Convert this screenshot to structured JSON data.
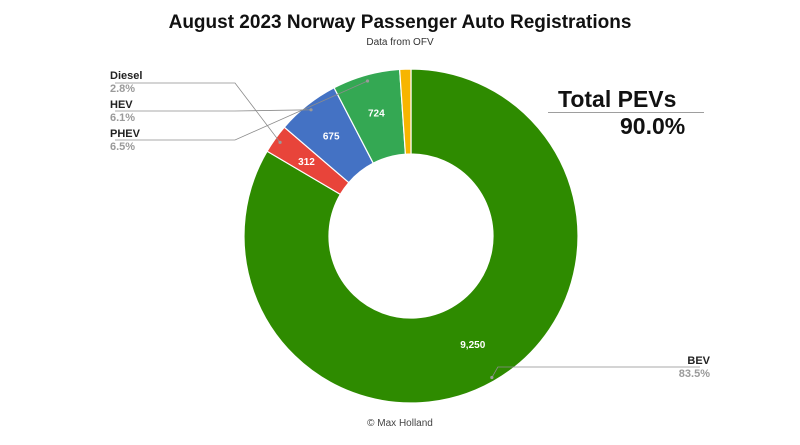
{
  "chart_data": {
    "type": "pie",
    "subtype": "donut",
    "title": "August 2023 Norway Passenger Auto Registrations",
    "subtitle": "Data from OFV",
    "series": [
      {
        "name": "BEV",
        "value": 9250,
        "value_label": "9,250",
        "percent_label": "83.5%",
        "color": "#2e8b00"
      },
      {
        "name": "Diesel",
        "value": 312,
        "value_label": "312",
        "percent_label": "2.8%",
        "color": "#e8443a"
      },
      {
        "name": "HEV",
        "value": 675,
        "value_label": "675",
        "percent_label": "6.1%",
        "color": "#4472c4"
      },
      {
        "name": "PHEV",
        "value": 724,
        "value_label": "724",
        "percent_label": "6.5%",
        "color": "#34a853"
      },
      {
        "name": "",
        "value": 120,
        "value_label": "",
        "percent_label": "",
        "color": "#f7b500"
      }
    ],
    "annotation": {
      "label": "Total PEVs",
      "value": "90.0%"
    },
    "footer": "© Max Holland"
  }
}
